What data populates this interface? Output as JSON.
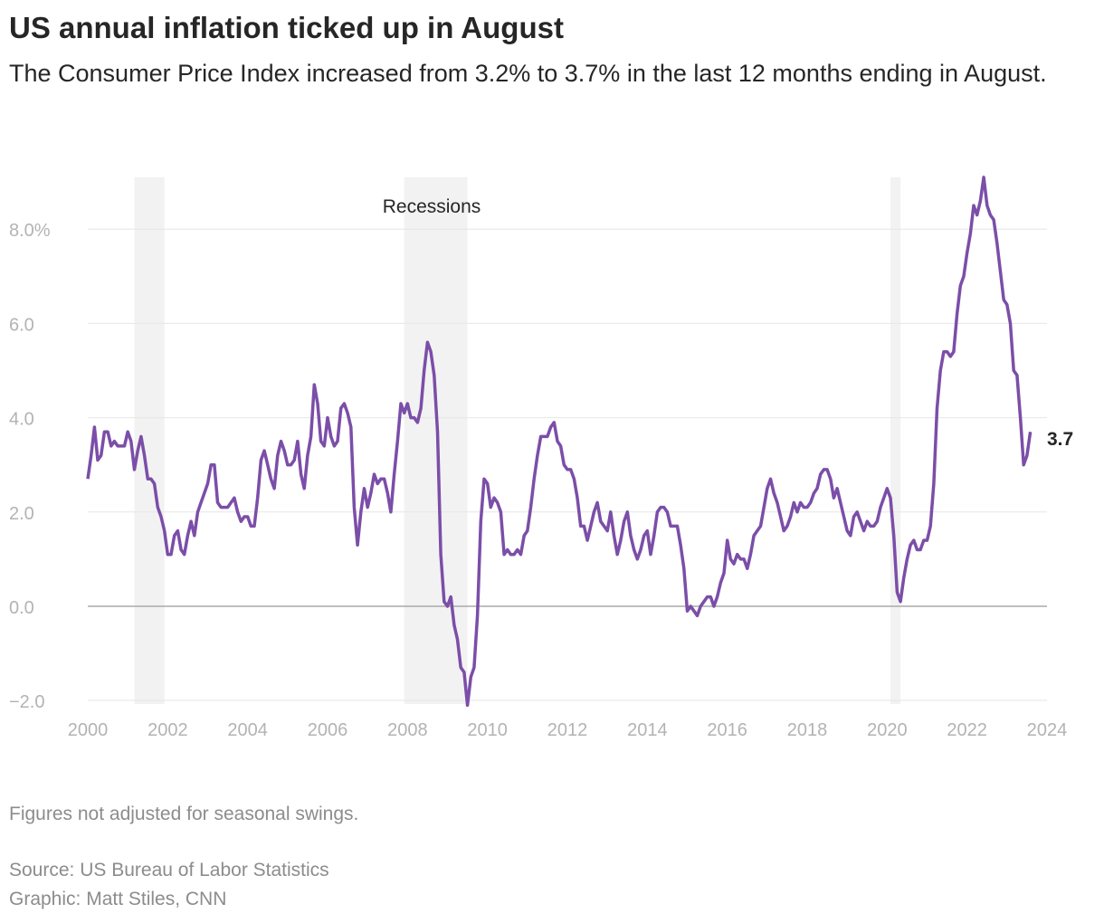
{
  "title": "US annual inflation ticked up in August",
  "subtitle": "The Consumer Price Index increased from 3.2% to 3.7% in the last 12 months ending in August.",
  "notes": {
    "seasonal": "Figures not adjusted for seasonal swings.",
    "source": "Source: US Bureau of Labor Statistics",
    "graphic": "Graphic: Matt Stiles, CNN"
  },
  "chart_data": {
    "type": "line",
    "title": "",
    "xlabel": "",
    "ylabel": "",
    "xlim": [
      2000,
      2024
    ],
    "ylim": [
      -2,
      9
    ],
    "grid": true,
    "line_color": "#7b4ea8",
    "recession_color": "#f2f2f2",
    "x_ticks": [
      "2000",
      "2002",
      "2004",
      "2006",
      "2008",
      "2010",
      "2012",
      "2014",
      "2016",
      "2018",
      "2020",
      "2022",
      "2024"
    ],
    "y_ticks": [
      {
        "value": 8,
        "label": "8.0%"
      },
      {
        "value": 6,
        "label": "6.0"
      },
      {
        "value": 4,
        "label": "4.0"
      },
      {
        "value": 2,
        "label": "2.0"
      },
      {
        "value": 0,
        "label": "0.0"
      },
      {
        "value": -2,
        "label": "−2.0"
      }
    ],
    "recessions_label": "Recessions",
    "recessions": [
      [
        "2001-03",
        "2001-11"
      ],
      [
        "2007-12",
        "2009-06"
      ],
      [
        "2020-02",
        "2020-04"
      ]
    ],
    "end_label": "3.7",
    "series": [
      {
        "start": "2000-01",
        "frequency": "monthly",
        "values": [
          2.7,
          3.2,
          3.8,
          3.1,
          3.2,
          3.7,
          3.7,
          3.4,
          3.5,
          3.4,
          3.4,
          3.4,
          3.7,
          3.5,
          2.9,
          3.3,
          3.6,
          3.2,
          2.7,
          2.7,
          2.6,
          2.1,
          1.9,
          1.6,
          1.1,
          1.1,
          1.5,
          1.6,
          1.2,
          1.1,
          1.5,
          1.8,
          1.5,
          2.0,
          2.2,
          2.4,
          2.6,
          3.0,
          3.0,
          2.2,
          2.1,
          2.1,
          2.1,
          2.2,
          2.3,
          2.0,
          1.8,
          1.9,
          1.9,
          1.7,
          1.7,
          2.3,
          3.1,
          3.3,
          3.0,
          2.7,
          2.5,
          3.2,
          3.5,
          3.3,
          3.0,
          3.0,
          3.1,
          3.5,
          2.8,
          2.5,
          3.2,
          3.6,
          4.7,
          4.3,
          3.5,
          3.4,
          4.0,
          3.6,
          3.4,
          3.5,
          4.2,
          4.3,
          4.1,
          3.8,
          2.1,
          1.3,
          2.0,
          2.5,
          2.1,
          2.4,
          2.8,
          2.6,
          2.7,
          2.7,
          2.4,
          2.0,
          2.8,
          3.5,
          4.3,
          4.1,
          4.3,
          4.0,
          4.0,
          3.9,
          4.2,
          5.0,
          5.6,
          5.4,
          4.9,
          3.7,
          1.1,
          0.1,
          0.0,
          0.2,
          -0.4,
          -0.7,
          -1.3,
          -1.4,
          -2.1,
          -1.5,
          -1.3,
          -0.2,
          1.8,
          2.7,
          2.6,
          2.1,
          2.3,
          2.2,
          2.0,
          1.1,
          1.2,
          1.1,
          1.1,
          1.2,
          1.1,
          1.5,
          1.6,
          2.1,
          2.7,
          3.2,
          3.6,
          3.6,
          3.6,
          3.8,
          3.9,
          3.5,
          3.4,
          3.0,
          2.9,
          2.9,
          2.7,
          2.3,
          1.7,
          1.7,
          1.4,
          1.7,
          2.0,
          2.2,
          1.8,
          1.7,
          1.6,
          2.0,
          1.5,
          1.1,
          1.4,
          1.8,
          2.0,
          1.5,
          1.2,
          1.0,
          1.2,
          1.5,
          1.6,
          1.1,
          1.5,
          2.0,
          2.1,
          2.1,
          2.0,
          1.7,
          1.7,
          1.7,
          1.3,
          0.8,
          -0.1,
          0.0,
          -0.1,
          -0.2,
          0.0,
          0.1,
          0.2,
          0.2,
          0.0,
          0.2,
          0.5,
          0.7,
          1.4,
          1.0,
          0.9,
          1.1,
          1.0,
          1.0,
          0.8,
          1.1,
          1.5,
          1.6,
          1.7,
          2.1,
          2.5,
          2.7,
          2.4,
          2.2,
          1.9,
          1.6,
          1.7,
          1.9,
          2.2,
          2.0,
          2.2,
          2.1,
          2.1,
          2.2,
          2.4,
          2.5,
          2.8,
          2.9,
          2.9,
          2.7,
          2.3,
          2.5,
          2.2,
          1.9,
          1.6,
          1.5,
          1.9,
          2.0,
          1.8,
          1.6,
          1.8,
          1.7,
          1.7,
          1.8,
          2.1,
          2.3,
          2.5,
          2.3,
          1.5,
          0.3,
          0.1,
          0.6,
          1.0,
          1.3,
          1.4,
          1.2,
          1.2,
          1.4,
          1.4,
          1.7,
          2.6,
          4.2,
          5.0,
          5.4,
          5.4,
          5.3,
          5.4,
          6.2,
          6.8,
          7.0,
          7.5,
          7.9,
          8.5,
          8.3,
          8.6,
          9.1,
          8.5,
          8.3,
          8.2,
          7.7,
          7.1,
          6.5,
          6.4,
          6.0,
          5.0,
          4.9,
          4.0,
          3.0,
          3.2,
          3.7
        ]
      }
    ]
  }
}
